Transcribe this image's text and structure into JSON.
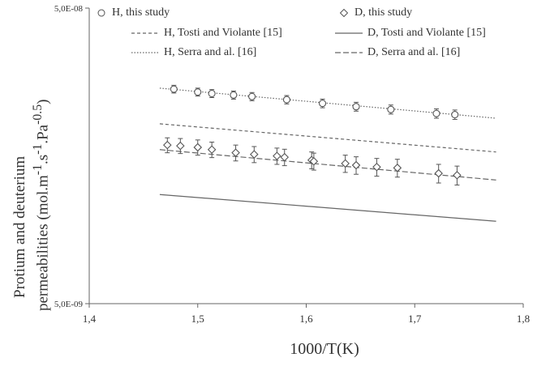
{
  "chart_data": {
    "type": "scatter",
    "xlabel": "1000/T(K)",
    "ylabel_line1": "Protium and deuterium",
    "ylabel_line2_prefix": "permeabilities (mol.m",
    "ylabel_line2_sup1": "-1",
    "ylabel_line2_mid1": ".s",
    "ylabel_line2_sup2": "-1",
    "ylabel_line2_mid2": ".Pa",
    "ylabel_line2_sup3": "-0.5",
    "ylabel_line2_suffix": ")",
    "xlim": [
      1.4,
      1.8
    ],
    "ylim": [
      5e-09,
      5e-08
    ],
    "yscale": "log",
    "x_ticks": [
      "1,4",
      "1,5",
      "1,6",
      "1,7",
      "1,8"
    ],
    "y_ticks": [
      "5,0E-09",
      "5,0E-08"
    ],
    "legend_position": "top",
    "series": [
      {
        "name": "H, this study",
        "kind": "points",
        "marker": "circle",
        "x": [
          1.478,
          1.5,
          1.513,
          1.533,
          1.55,
          1.582,
          1.615,
          1.646,
          1.678,
          1.72,
          1.737
        ],
        "y": [
          2.66e-08,
          2.6e-08,
          2.57e-08,
          2.54e-08,
          2.51e-08,
          2.45e-08,
          2.38e-08,
          2.32e-08,
          2.27e-08,
          2.2e-08,
          2.18e-08
        ],
        "err": [
          8e-10,
          8e-10,
          8e-10,
          8e-10,
          8e-10,
          8e-10,
          8e-10,
          8e-10,
          8e-10,
          8e-10,
          8e-10
        ]
      },
      {
        "name": "D, this study",
        "kind": "points",
        "marker": "diamond",
        "x": [
          1.472,
          1.484,
          1.5,
          1.513,
          1.535,
          1.552,
          1.573,
          1.58,
          1.605,
          1.607,
          1.636,
          1.646,
          1.665,
          1.684,
          1.722,
          1.739
        ],
        "y": [
          1.72e-08,
          1.71e-08,
          1.69e-08,
          1.66e-08,
          1.62e-08,
          1.6e-08,
          1.58e-08,
          1.565e-08,
          1.53e-08,
          1.515e-08,
          1.49e-08,
          1.47e-08,
          1.45e-08,
          1.44e-08,
          1.38e-08,
          1.36e-08
        ],
        "err": [
          1e-09,
          1e-09,
          1e-09,
          1e-09,
          1e-09,
          1e-09,
          1e-09,
          1e-09,
          1e-09,
          1e-09,
          1e-09,
          1e-09,
          1e-09,
          1e-09,
          1e-09,
          1e-09
        ]
      },
      {
        "name": "H, Tosti and Violante [15]",
        "kind": "line",
        "style": "short-dash",
        "x": [
          1.465,
          1.775
        ],
        "y": [
          2.03e-08,
          1.63e-08
        ]
      },
      {
        "name": "D, Tosti and Violante [15]",
        "kind": "line",
        "style": "solid",
        "x": [
          1.465,
          1.775
        ],
        "y": [
          1.17e-08,
          9.5e-09
        ]
      },
      {
        "name": "H, Serra and al. [16]",
        "kind": "line",
        "style": "dotted",
        "x": [
          1.465,
          1.775
        ],
        "y": [
          2.68e-08,
          2.12e-08
        ]
      },
      {
        "name": "D, Serra and al. [16]",
        "kind": "line",
        "style": "dashed",
        "x": [
          1.465,
          1.775
        ],
        "y": [
          1.66e-08,
          1.31e-08
        ]
      }
    ]
  }
}
